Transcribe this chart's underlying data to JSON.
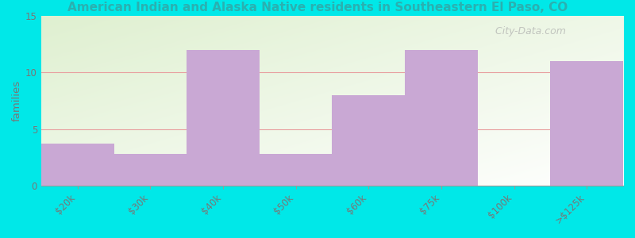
{
  "subtitle": "American Indian and Alaska Native residents in Southeastern El Paso, CO",
  "categories": [
    "$20k",
    "$30k",
    "$40k",
    "$50k",
    "$60k",
    "$75k",
    "$100k",
    ">$125k"
  ],
  "values": [
    3.7,
    2.8,
    12.0,
    2.8,
    8.0,
    12.0,
    0.0,
    11.0
  ],
  "bar_color": "#c9a8d4",
  "background_outer": "#00e8e8",
  "ylabel": "families",
  "ylim": [
    0,
    15
  ],
  "yticks": [
    0,
    5,
    10,
    15
  ],
  "title_fontsize": 15,
  "subtitle_fontsize": 11,
  "subtitle_color": "#2ab0b0",
  "watermark": "  City-Data.com",
  "tick_label_color": "#777777",
  "tick_label_fontsize": 8.5
}
